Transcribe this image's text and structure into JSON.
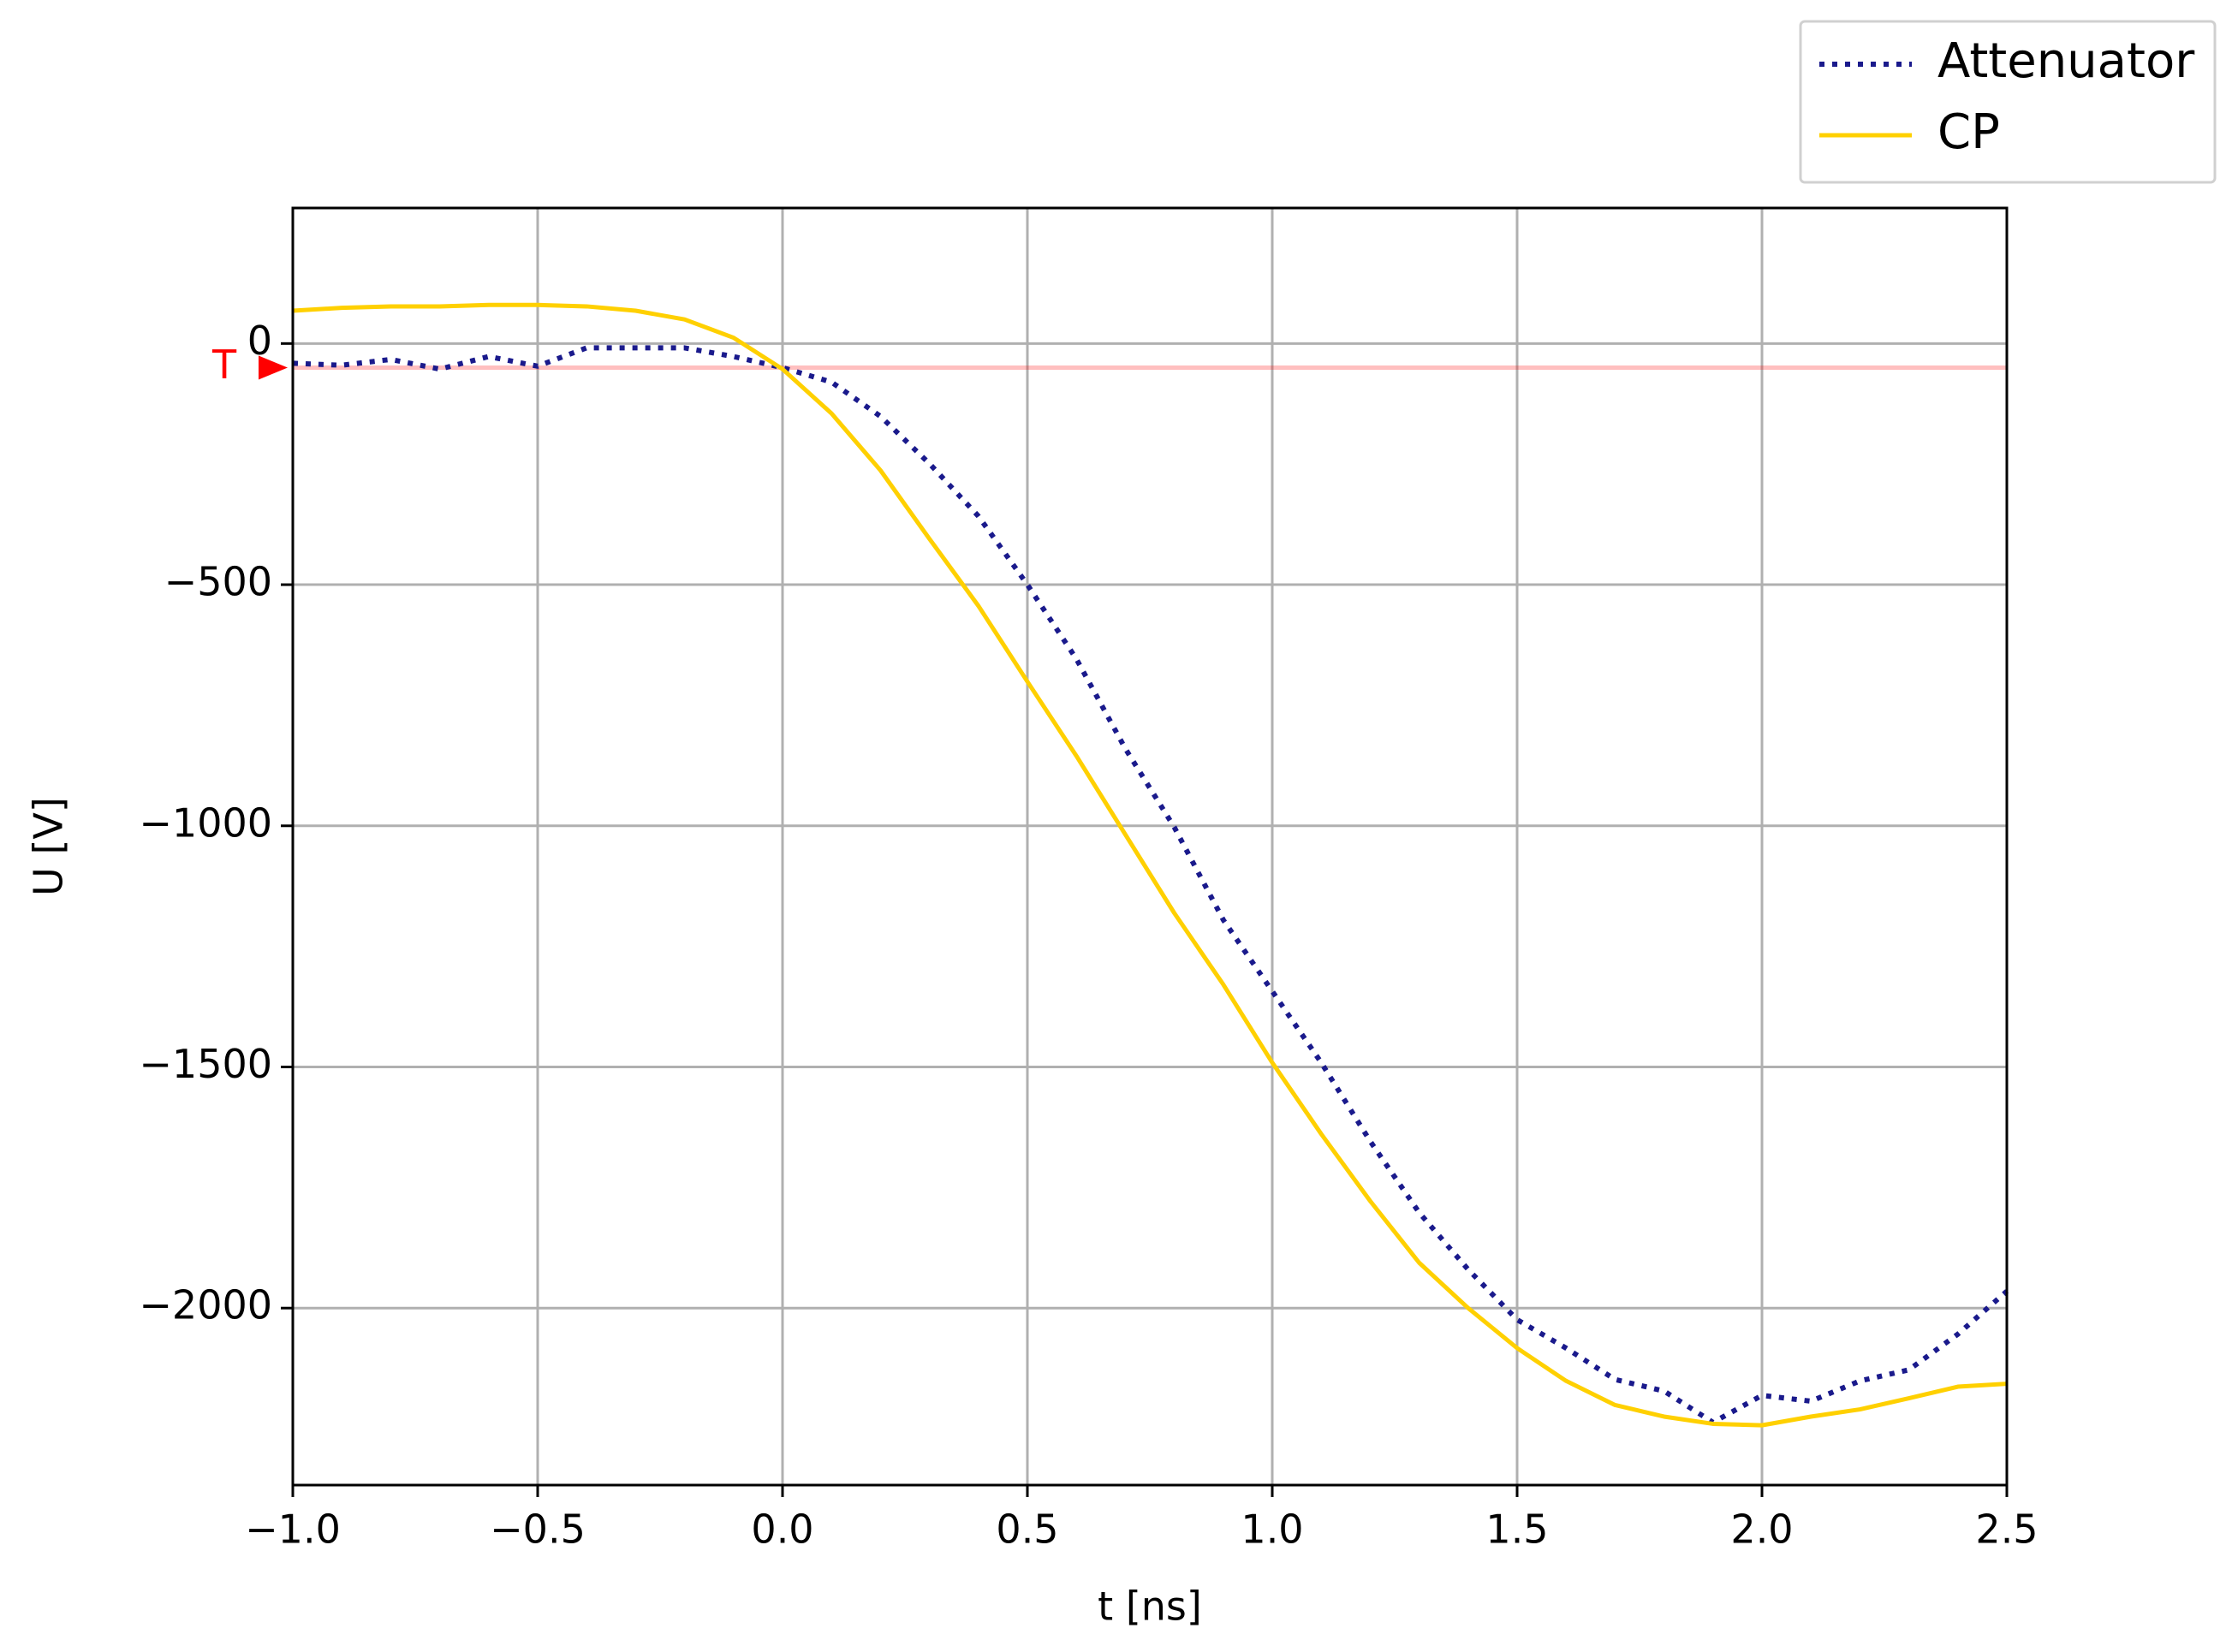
{
  "chart_data": {
    "type": "line",
    "xlabel": "t [ns]",
    "ylabel": "U [V]",
    "x": [
      -1.0,
      -0.9,
      -0.8,
      -0.7,
      -0.6,
      -0.5,
      -0.4,
      -0.3,
      -0.2,
      -0.1,
      0.0,
      0.1,
      0.2,
      0.3,
      0.4,
      0.5,
      0.6,
      0.7,
      0.8,
      0.9,
      1.0,
      1.1,
      1.2,
      1.3,
      1.4,
      1.5,
      1.6,
      1.7,
      1.8,
      1.9,
      2.0,
      2.1,
      2.2,
      2.3,
      2.4,
      2.5
    ],
    "series": [
      {
        "name": "Attenuator",
        "color": "#1a1a8c",
        "linestyle": "dotted",
        "values": [
          -41,
          -45,
          -33,
          -53,
          -27,
          -47,
          -9,
          -9,
          -9,
          -27,
          -50,
          -80,
          -151,
          -249,
          -358,
          -500,
          -654,
          -840,
          -1003,
          -1195,
          -1343,
          -1491,
          -1654,
          -1802,
          -1920,
          -2024,
          -2083,
          -2148,
          -2172,
          -2237,
          -2181,
          -2193,
          -2151,
          -2128,
          -2054,
          -1965
        ]
      },
      {
        "name": "CP",
        "color": "#ffd000",
        "linestyle": "solid",
        "values": [
          68,
          74,
          77,
          77,
          80,
          80,
          77,
          68,
          50,
          12,
          -53,
          -145,
          -263,
          -405,
          -544,
          -701,
          -855,
          -1018,
          -1181,
          -1329,
          -1491,
          -1639,
          -1778,
          -1906,
          -2000,
          -2083,
          -2151,
          -2201,
          -2225,
          -2240,
          -2243,
          -2225,
          -2210,
          -2187,
          -2163,
          -2157
        ]
      }
    ],
    "trigger": {
      "label": "T",
      "value": -50,
      "color": "#ff0000"
    },
    "xlim": [
      -1.0,
      2.5
    ],
    "xticks": [
      {
        "value": -1.0,
        "label": "−1.0"
      },
      {
        "value": -0.5,
        "label": "−0.5"
      },
      {
        "value": 0.0,
        "label": "0.0"
      },
      {
        "value": 0.5,
        "label": "0.5"
      },
      {
        "value": 1.0,
        "label": "1.0"
      },
      {
        "value": 1.5,
        "label": "1.5"
      },
      {
        "value": 2.0,
        "label": "2.0"
      },
      {
        "value": 2.5,
        "label": "2.5"
      }
    ],
    "ylim": [
      -2367,
      281
    ],
    "yticks": [
      0,
      {
        "value": -500,
        "label": "−500"
      },
      {
        "value": -1000,
        "label": "−1000"
      },
      {
        "value": -1500,
        "label": "−1500"
      },
      {
        "value": -2000,
        "label": "−2000"
      }
    ],
    "grid": true,
    "legend": "upper right"
  }
}
